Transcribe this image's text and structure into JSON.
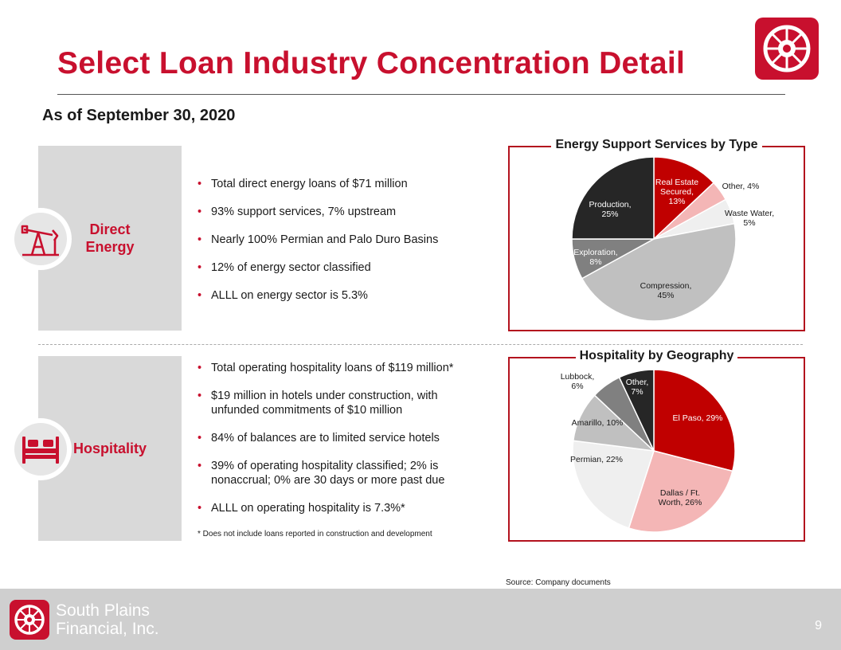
{
  "title": "Select Loan Industry Concentration Detail",
  "as_of": "As of September 30, 2020",
  "direct_energy": {
    "label_line1": "Direct",
    "label_line2": "Energy",
    "bullets": [
      "Total direct energy loans of $71 million",
      "93% support services, 7% upstream",
      "Nearly 100% Permian and Palo Duro Basins",
      "12% of energy sector classified",
      "ALLL on energy sector is 5.3%"
    ]
  },
  "hospitality": {
    "label": "Hospitality",
    "bullets": [
      "Total operating hospitality loans of $119 million*",
      "$19 million in hotels under construction,  with unfunded  commitments of $10 million",
      "84% of balances are to limited service hotels",
      "39% of operating hospitality classified; 2% is nonaccrual;  0%  are 30 days or more past due",
      "ALLL on operating hospitality is 7.3%*"
    ],
    "footnote": "*   Does not include loans reported in construction and development"
  },
  "chart_data": [
    {
      "type": "pie",
      "title": "Energy Support Services by Type",
      "slices": [
        {
          "label": "Real Estate Secured, 13%",
          "value": 13,
          "color": "#c00000",
          "lines": [
            "Real Estate",
            "Secured,",
            "13%"
          ]
        },
        {
          "label": "Other, 4%",
          "value": 4,
          "color": "#f4b6b6",
          "lines": [
            "Other, 4%"
          ]
        },
        {
          "label": "Waste Water, 5%",
          "value": 5,
          "color": "#efefef",
          "lines": [
            "Waste Water,",
            "5%"
          ]
        },
        {
          "label": "Compression, 45%",
          "value": 45,
          "color": "#c0c0c0",
          "lines": [
            "Compression,",
            "45%"
          ]
        },
        {
          "label": "Exploration, 8%",
          "value": 8,
          "color": "#808080",
          "lines": [
            "Exploration,",
            "8%"
          ]
        },
        {
          "label": "Production, 25%",
          "value": 25,
          "color": "#262626",
          "lines": [
            "Production,",
            "25%"
          ]
        }
      ]
    },
    {
      "type": "pie",
      "title": "Hospitality by Geography",
      "slices": [
        {
          "label": "El Paso, 29%",
          "value": 29,
          "color": "#c00000",
          "lines": [
            "El Paso, 29%"
          ]
        },
        {
          "label": "Dallas / Ft. Worth, 26%",
          "value": 26,
          "color": "#f4b6b6",
          "lines": [
            "Dallas / Ft.",
            "Worth, 26%"
          ]
        },
        {
          "label": "Permian, 22%",
          "value": 22,
          "color": "#efefef",
          "lines": [
            "Permian, 22%"
          ]
        },
        {
          "label": "Amarillo, 10%",
          "value": 10,
          "color": "#c0c0c0",
          "lines": [
            "Amarillo, 10%"
          ]
        },
        {
          "label": "Lubbock, 6%",
          "value": 6,
          "color": "#808080",
          "lines": [
            "Lubbock,",
            "6%"
          ]
        },
        {
          "label": "Other, 7%",
          "value": 7,
          "color": "#262626",
          "lines": [
            "Other,",
            "7%"
          ]
        }
      ]
    }
  ],
  "source": "Source: Company documents",
  "footer": {
    "company_line1": "South Plains",
    "company_line2": "Financial, Inc.",
    "page_number": "9"
  }
}
